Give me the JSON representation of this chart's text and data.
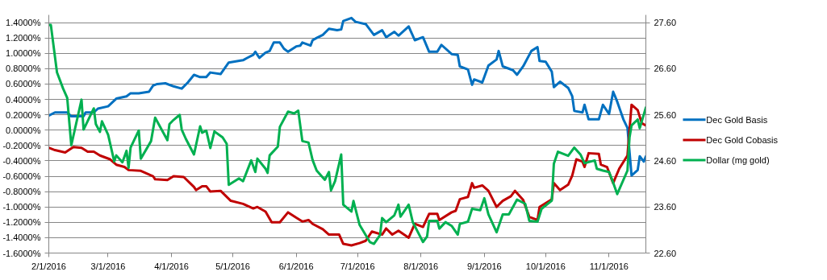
{
  "chart_data": {
    "type": "line",
    "xlim": [
      "2016-02-01",
      "2016-11-19"
    ],
    "xticks": [
      {
        "value": "2016-02-01",
        "label": "2/1/2016"
      },
      {
        "value": "2016-03-01",
        "label": "3/1/2016"
      },
      {
        "value": "2016-04-01",
        "label": "4/1/2016"
      },
      {
        "value": "2016-05-01",
        "label": "5/1/2016"
      },
      {
        "value": "2016-06-01",
        "label": "6/1/2016"
      },
      {
        "value": "2016-07-01",
        "label": "7/1/2016"
      },
      {
        "value": "2016-08-01",
        "label": "8/1/2016"
      },
      {
        "value": "2016-09-01",
        "label": "9/1/2016"
      },
      {
        "value": "2016-10-01",
        "label": "10/1/2016"
      },
      {
        "value": "2016-11-01",
        "label": "11/1/2016"
      }
    ],
    "ylim": [
      -1.6,
      1.5
    ],
    "yticks": [
      {
        "value": -1.6,
        "label": "-1.6000%"
      },
      {
        "value": -1.4,
        "label": "-1.4000%"
      },
      {
        "value": -1.2,
        "label": "-1.2000%"
      },
      {
        "value": -1.0,
        "label": "-1.0000%"
      },
      {
        "value": -0.8,
        "label": "-0.8000%"
      },
      {
        "value": -0.6,
        "label": "-0.6000%"
      },
      {
        "value": -0.4,
        "label": "-0.4000%"
      },
      {
        "value": -0.2,
        "label": "-0.2000%"
      },
      {
        "value": 0,
        "label": "0.0000%"
      },
      {
        "value": 0.2,
        "label": "0.2000%"
      },
      {
        "value": 0.4,
        "label": "0.4000%"
      },
      {
        "value": 0.6,
        "label": "0.6000%"
      },
      {
        "value": 0.8,
        "label": "0.8000%"
      },
      {
        "value": 1.0,
        "label": "1.0000%"
      },
      {
        "value": 1.2,
        "label": "1.2000%"
      },
      {
        "value": 1.4,
        "label": "1.4000%"
      }
    ],
    "y2lim": [
      22.6,
      27.77
    ],
    "y2ticks": [
      {
        "value": 22.6,
        "label": "22.60"
      },
      {
        "value": 23.6,
        "label": "23.60"
      },
      {
        "value": 24.6,
        "label": "24.60"
      },
      {
        "value": 25.6,
        "label": "25.60"
      },
      {
        "value": 26.6,
        "label": "26.60"
      },
      {
        "value": 27.6,
        "label": "27.60"
      }
    ],
    "grid": "y",
    "legend": "right",
    "marker": "none",
    "line_style": "solid",
    "series": [
      {
        "name": "Dec Gold Basis",
        "color": "#0070c0",
        "x": [
          "2016-02-01",
          "2016-02-04",
          "2016-02-10",
          "2016-02-12",
          "2016-02-18",
          "2016-02-19",
          "2016-02-23",
          "2016-02-25",
          "2016-03-01",
          "2016-03-05",
          "2016-03-10",
          "2016-03-12",
          "2016-03-16",
          "2016-03-21",
          "2016-03-23",
          "2016-03-25",
          "2016-03-29",
          "2016-04-02",
          "2016-04-06",
          "2016-04-09",
          "2016-04-12",
          "2016-04-15",
          "2016-04-18",
          "2016-04-20",
          "2016-04-25",
          "2016-04-29",
          "2016-05-06",
          "2016-05-08",
          "2016-05-11",
          "2016-05-12",
          "2016-05-14",
          "2016-05-17",
          "2016-05-19",
          "2016-05-21",
          "2016-05-24",
          "2016-05-26",
          "2016-05-28",
          "2016-06-01",
          "2016-06-03",
          "2016-06-04",
          "2016-06-08",
          "2016-06-09",
          "2016-06-11",
          "2016-06-14",
          "2016-06-17",
          "2016-06-21",
          "2016-06-23",
          "2016-06-24",
          "2016-06-28",
          "2016-06-30",
          "2016-07-05",
          "2016-07-09",
          "2016-07-13",
          "2016-07-15",
          "2016-07-19",
          "2016-07-21",
          "2016-07-26",
          "2016-07-29",
          "2016-08-02",
          "2016-08-05",
          "2016-08-09",
          "2016-08-11",
          "2016-08-16",
          "2016-08-19",
          "2016-08-20",
          "2016-08-24",
          "2016-08-26",
          "2016-08-27",
          "2016-08-31",
          "2016-09-03",
          "2016-09-07",
          "2016-09-08",
          "2016-09-10",
          "2016-09-15",
          "2016-09-17",
          "2016-09-20",
          "2016-09-24",
          "2016-09-27",
          "2016-09-28",
          "2016-10-01",
          "2016-10-04",
          "2016-10-05",
          "2016-10-08",
          "2016-10-12",
          "2016-10-14",
          "2016-10-15",
          "2016-10-19",
          "2016-10-20",
          "2016-10-22",
          "2016-10-27",
          "2016-10-29",
          "2016-11-01",
          "2016-11-03",
          "2016-11-05",
          "2016-11-08",
          "2016-11-10",
          "2016-11-12",
          "2016-11-15",
          "2016-11-16",
          "2016-11-18",
          "2016-11-19"
        ],
        "values": [
          0.19,
          0.23,
          0.23,
          0.18,
          0.18,
          0.23,
          0.23,
          0.28,
          0.31,
          0.41,
          0.44,
          0.48,
          0.48,
          0.5,
          0.58,
          0.6,
          0.61,
          0.57,
          0.54,
          0.62,
          0.72,
          0.69,
          0.69,
          0.75,
          0.73,
          0.88,
          0.91,
          0.94,
          0.98,
          1.02,
          0.94,
          1.01,
          1.03,
          1.14,
          1.14,
          1.06,
          1.02,
          1.09,
          1.1,
          1.14,
          1.1,
          1.17,
          1.2,
          1.24,
          1.32,
          1.3,
          1.31,
          1.42,
          1.46,
          1.41,
          1.38,
          1.24,
          1.3,
          1.21,
          1.28,
          1.23,
          1.35,
          1.17,
          1.21,
          1.02,
          1.02,
          1.11,
          0.99,
          0.98,
          0.83,
          0.79,
          0.59,
          0.66,
          0.62,
          0.84,
          0.92,
          1.03,
          0.83,
          0.78,
          0.72,
          0.83,
          1.03,
          1.08,
          0.9,
          0.89,
          0.76,
          0.56,
          0.63,
          0.55,
          0.44,
          0.25,
          0.23,
          0.33,
          0.14,
          0.14,
          0.33,
          0.21,
          0.5,
          0.37,
          0.14,
          0.03,
          -0.59,
          -0.52,
          -0.34,
          -0.41,
          -0.34
        ]
      },
      {
        "name": "Dec Gold Cobasis",
        "color": "#c00000",
        "x": [
          "2016-02-01",
          "2016-02-04",
          "2016-02-09",
          "2016-02-13",
          "2016-02-17",
          "2016-02-20",
          "2016-02-23",
          "2016-02-26",
          "2016-03-02",
          "2016-03-05",
          "2016-03-09",
          "2016-03-11",
          "2016-03-17",
          "2016-03-23",
          "2016-03-24",
          "2016-03-30",
          "2016-04-02",
          "2016-04-07",
          "2016-04-12",
          "2016-04-13",
          "2016-04-16",
          "2016-04-18",
          "2016-04-20",
          "2016-04-25",
          "2016-04-30",
          "2016-05-06",
          "2016-05-11",
          "2016-05-13",
          "2016-05-17",
          "2016-05-20",
          "2016-05-24",
          "2016-05-28",
          "2016-06-01",
          "2016-06-04",
          "2016-06-07",
          "2016-06-09",
          "2016-06-14",
          "2016-06-17",
          "2016-06-22",
          "2016-06-24",
          "2016-06-28",
          "2016-07-02",
          "2016-07-05",
          "2016-07-08",
          "2016-07-13",
          "2016-07-15",
          "2016-07-18",
          "2016-07-21",
          "2016-07-26",
          "2016-07-29",
          "2016-08-02",
          "2016-08-05",
          "2016-08-09",
          "2016-08-10",
          "2016-08-16",
          "2016-08-18",
          "2016-08-20",
          "2016-08-24",
          "2016-08-26",
          "2016-08-27",
          "2016-08-31",
          "2016-09-03",
          "2016-09-07",
          "2016-09-10",
          "2016-09-14",
          "2016-09-16",
          "2016-09-20",
          "2016-09-23",
          "2016-09-27",
          "2016-09-28",
          "2016-10-04",
          "2016-10-05",
          "2016-10-08",
          "2016-10-12",
          "2016-10-14",
          "2016-10-16",
          "2016-10-19",
          "2016-10-20",
          "2016-10-22",
          "2016-10-27",
          "2016-10-28",
          "2016-10-31",
          "2016-11-03",
          "2016-11-06",
          "2016-11-10",
          "2016-11-11",
          "2016-11-12",
          "2016-11-15",
          "2016-11-17",
          "2016-11-19"
        ],
        "values": [
          -0.23,
          -0.26,
          -0.29,
          -0.22,
          -0.23,
          -0.28,
          -0.28,
          -0.33,
          -0.38,
          -0.45,
          -0.48,
          -0.52,
          -0.53,
          -0.6,
          -0.64,
          -0.65,
          -0.6,
          -0.61,
          -0.74,
          -0.78,
          -0.73,
          -0.73,
          -0.8,
          -0.79,
          -0.92,
          -0.96,
          -1.02,
          -1.0,
          -1.06,
          -1.2,
          -1.2,
          -1.07,
          -1.14,
          -1.19,
          -1.17,
          -1.22,
          -1.29,
          -1.36,
          -1.36,
          -1.48,
          -1.5,
          -1.47,
          -1.44,
          -1.32,
          -1.36,
          -1.28,
          -1.36,
          -1.31,
          -1.4,
          -1.22,
          -1.26,
          -1.09,
          -1.09,
          -1.17,
          -1.07,
          -1.05,
          -0.9,
          -0.87,
          -0.69,
          -0.75,
          -0.72,
          -0.79,
          -1.0,
          -0.92,
          -0.86,
          -0.79,
          -0.91,
          -1.13,
          -1.17,
          -1.0,
          -0.9,
          -0.69,
          -0.78,
          -0.71,
          -0.59,
          -0.38,
          -0.41,
          -0.48,
          -0.3,
          -0.31,
          -0.45,
          -0.48,
          -0.69,
          -0.5,
          -0.33,
          0.0,
          0.33,
          0.26,
          0.09,
          0.06
        ]
      },
      {
        "name": "Dollar (mg gold)",
        "color": "#00b050",
        "axis": "y2",
        "x": [
          "2016-02-01",
          "2016-02-02",
          "2016-02-05",
          "2016-02-08",
          "2016-02-10",
          "2016-02-12",
          "2016-02-17",
          "2016-02-18",
          "2016-02-23",
          "2016-02-24",
          "2016-02-26",
          "2016-02-27",
          "2016-03-01",
          "2016-03-04",
          "2016-03-05",
          "2016-03-08",
          "2016-03-10",
          "2016-03-11",
          "2016-03-12",
          "2016-03-16",
          "2016-03-17",
          "2016-03-22",
          "2016-03-24",
          "2016-03-30",
          "2016-03-31",
          "2016-04-02",
          "2016-04-05",
          "2016-04-06",
          "2016-04-08",
          "2016-04-12",
          "2016-04-15",
          "2016-04-16",
          "2016-04-18",
          "2016-04-20",
          "2016-04-22",
          "2016-04-26",
          "2016-04-28",
          "2016-04-29",
          "2016-05-04",
          "2016-05-06",
          "2016-05-10",
          "2016-05-12",
          "2016-05-13",
          "2016-05-17",
          "2016-05-18",
          "2016-05-19",
          "2016-05-23",
          "2016-05-24",
          "2016-05-28",
          "2016-05-31",
          "2016-06-02",
          "2016-06-04",
          "2016-06-07",
          "2016-06-09",
          "2016-06-11",
          "2016-06-15",
          "2016-06-17",
          "2016-06-18",
          "2016-06-20",
          "2016-06-22",
          "2016-06-23",
          "2016-06-24",
          "2016-06-28",
          "2016-06-29",
          "2016-07-02",
          "2016-07-07",
          "2016-07-09",
          "2016-07-12",
          "2016-07-13",
          "2016-07-15",
          "2016-07-19",
          "2016-07-21",
          "2016-07-22",
          "2016-07-26",
          "2016-07-28",
          "2016-08-02",
          "2016-08-04",
          "2016-08-05",
          "2016-08-09",
          "2016-08-10",
          "2016-08-13",
          "2016-08-16",
          "2016-08-19",
          "2016-08-20",
          "2016-08-24",
          "2016-08-26",
          "2016-08-30",
          "2016-09-01",
          "2016-09-03",
          "2016-09-07",
          "2016-09-10",
          "2016-09-13",
          "2016-09-17",
          "2016-09-21",
          "2016-09-23",
          "2016-09-27",
          "2016-09-29",
          "2016-10-04",
          "2016-10-05",
          "2016-10-07",
          "2016-10-12",
          "2016-10-15",
          "2016-10-18",
          "2016-10-20",
          "2016-10-25",
          "2016-10-26",
          "2016-10-29",
          "2016-11-01",
          "2016-11-03",
          "2016-11-05",
          "2016-11-10",
          "2016-11-11",
          "2016-11-12",
          "2016-11-15",
          "2016-11-16",
          "2016-11-19"
        ],
        "values": [
          27.55,
          27.55,
          26.52,
          26.17,
          25.97,
          24.94,
          25.93,
          25.28,
          25.74,
          25.4,
          25.23,
          25.46,
          25.17,
          24.59,
          24.72,
          24.57,
          24.82,
          24.45,
          24.89,
          25.26,
          24.65,
          25.03,
          25.54,
          25.05,
          25.4,
          25.49,
          25.6,
          25.28,
          25.08,
          24.74,
          25.35,
          25.21,
          25.26,
          24.88,
          25.24,
          25.11,
          24.97,
          24.08,
          24.22,
          24.16,
          24.61,
          24.36,
          24.65,
          24.43,
          24.34,
          24.72,
          24.91,
          25.34,
          25.67,
          25.63,
          25.69,
          25.03,
          25.0,
          24.62,
          24.39,
          24.19,
          24.36,
          23.96,
          24.16,
          24.54,
          24.74,
          23.65,
          23.5,
          23.73,
          23.21,
          22.84,
          22.8,
          22.99,
          23.36,
          23.27,
          23.42,
          23.65,
          23.39,
          23.65,
          23.27,
          22.84,
          22.96,
          23.3,
          23.3,
          23.13,
          23.27,
          23.19,
          23.0,
          23.23,
          23.28,
          23.56,
          23.53,
          23.79,
          23.44,
          23.05,
          23.44,
          23.44,
          23.76,
          23.67,
          23.3,
          23.28,
          23.56,
          23.74,
          24.54,
          24.8,
          24.71,
          24.89,
          24.74,
          24.55,
          24.61,
          24.43,
          24.39,
          24.36,
          24.13,
          23.88,
          24.39,
          25.11,
          25.37,
          25.5,
          25.31,
          25.76
        ]
      }
    ]
  }
}
